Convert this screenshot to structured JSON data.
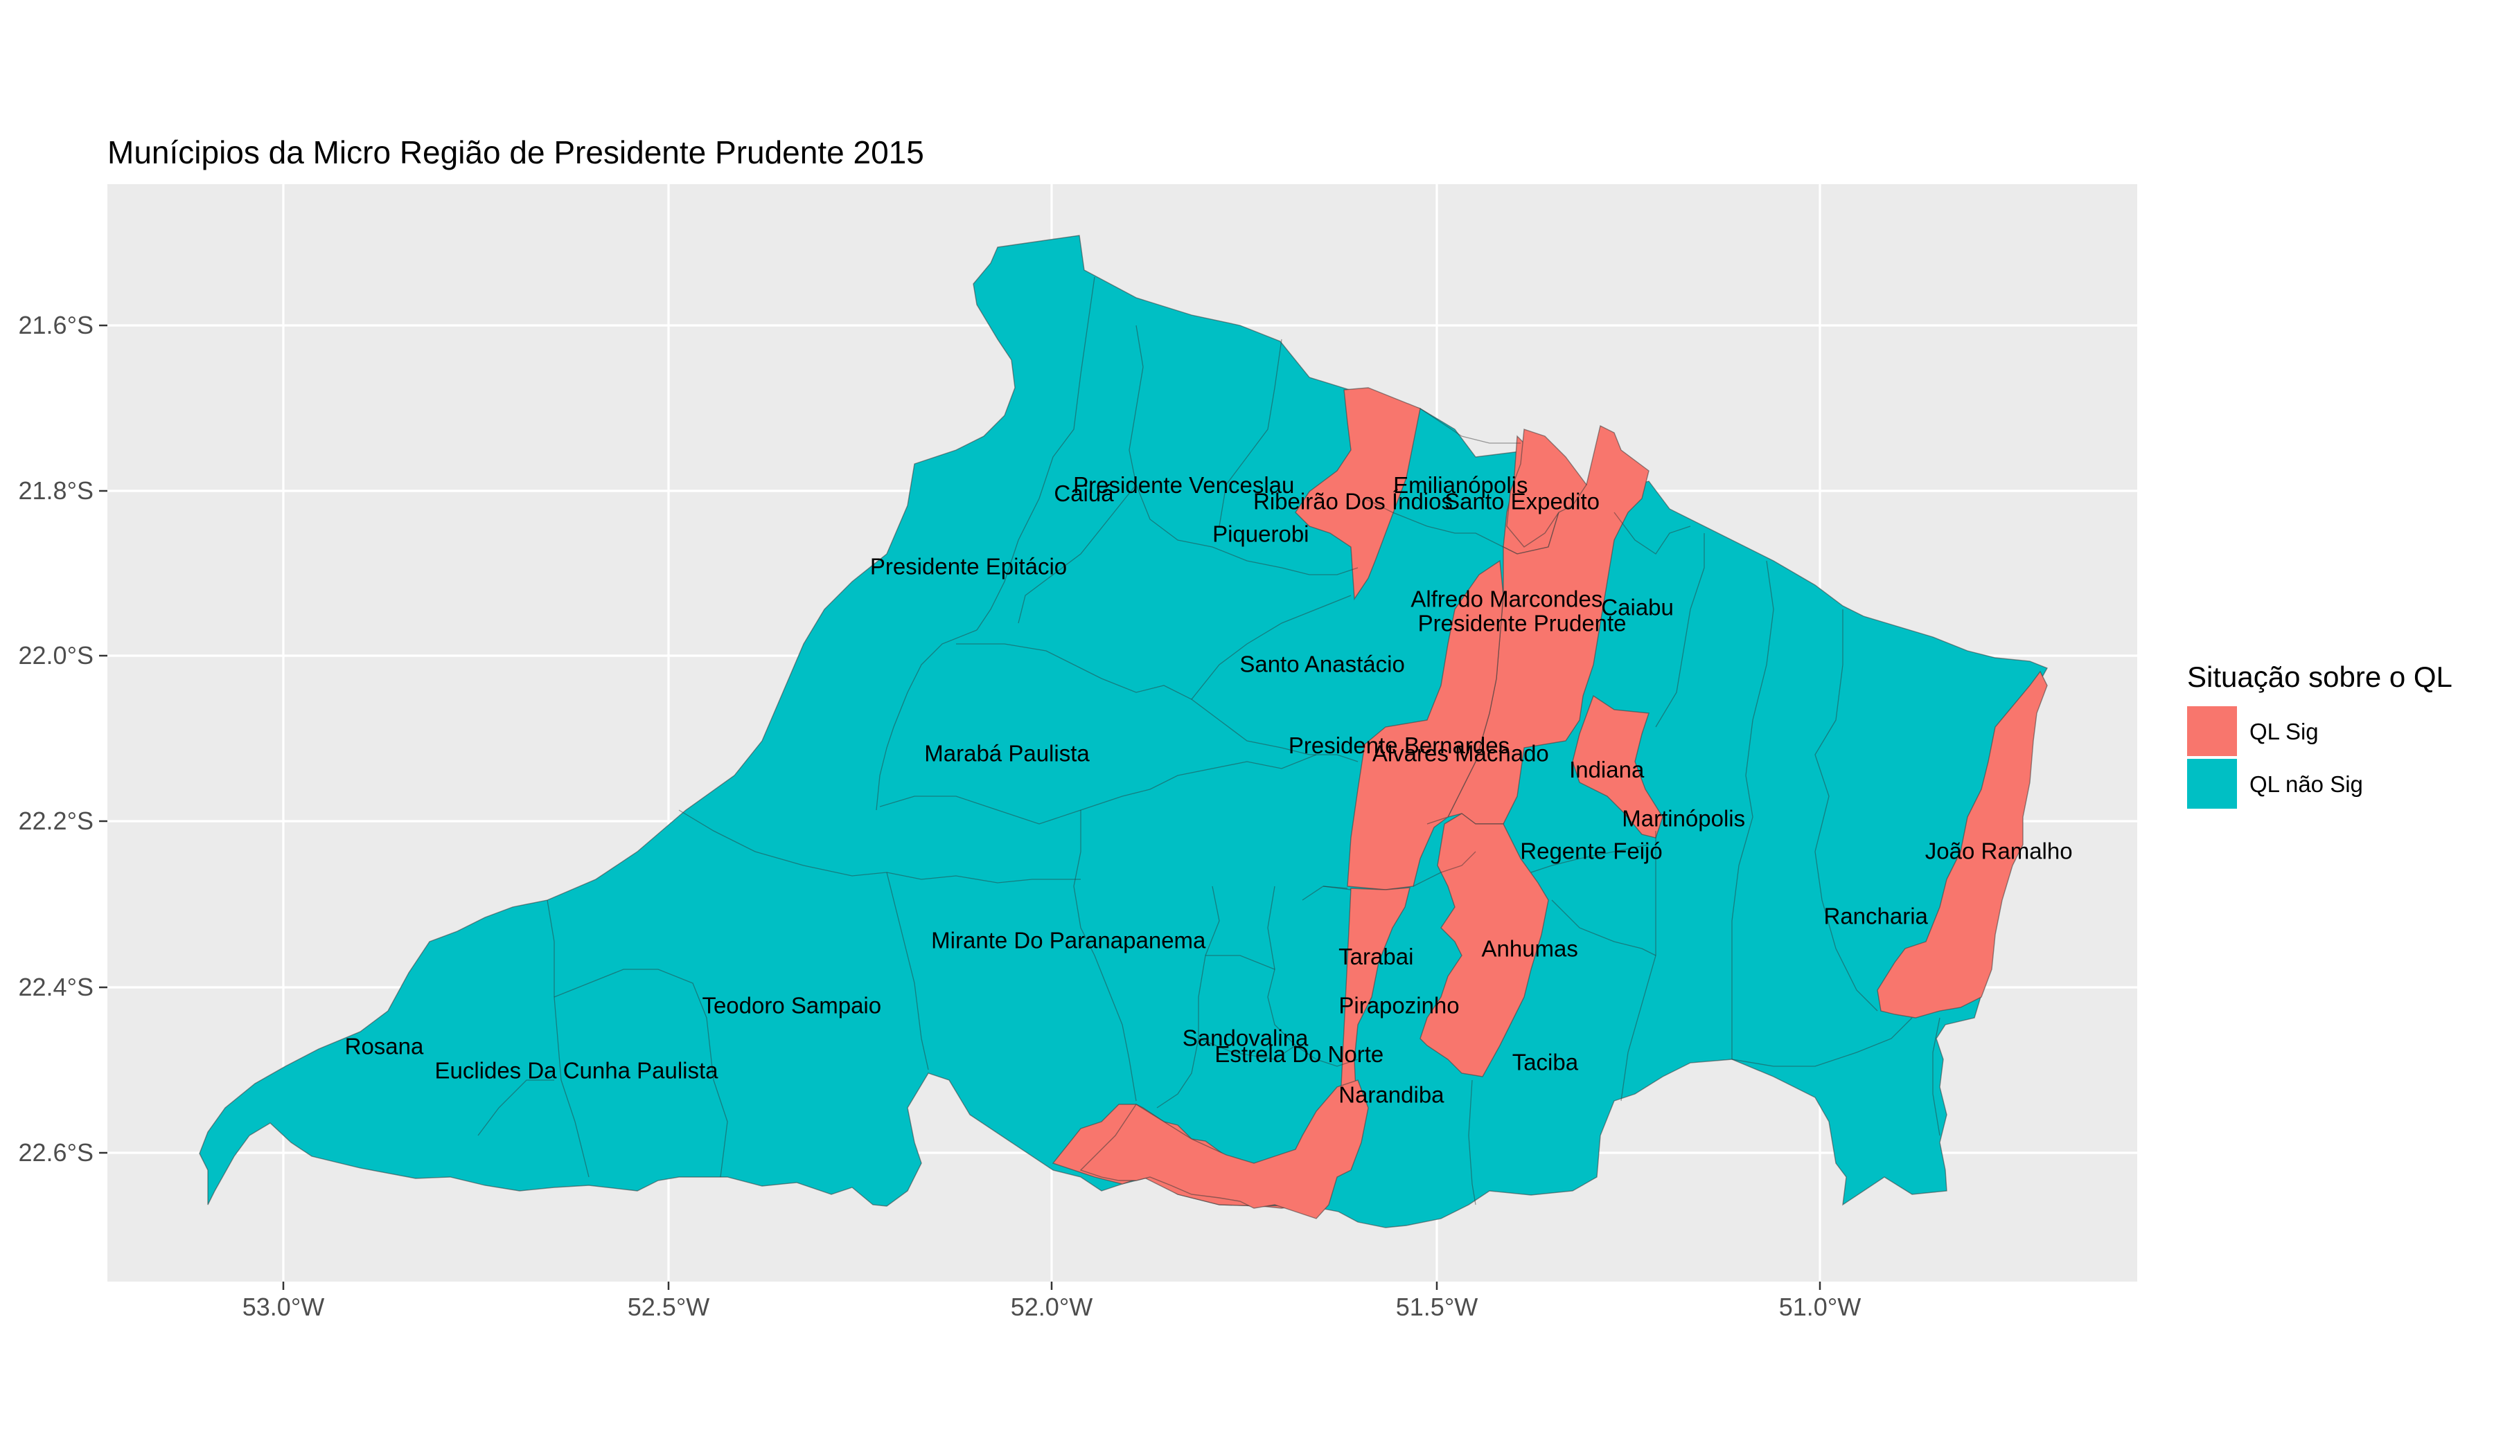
{
  "title": "Munícipios da Micro Região de Presidente Prudente 2015",
  "axes": {
    "x_ticks": [
      "53.0°W",
      "52.5°W",
      "52.0°W",
      "51.5°W",
      "51.0°W"
    ],
    "y_ticks": [
      "21.6°S",
      "21.8°S",
      "22.0°S",
      "22.2°S",
      "22.4°S",
      "22.6°S"
    ]
  },
  "legend": {
    "title": "Situação sobre o QL",
    "items": [
      {
        "label": "QL Sig",
        "color": "#F8766D"
      },
      {
        "label": "QL não Sig",
        "color": "#00BFC4"
      }
    ]
  },
  "chart_data": {
    "type": "choropleth",
    "title": "Munícipios da Micro Região de Presidente Prudente 2015",
    "legend_placement": "right",
    "grid": true,
    "lon_range": [
      -53.23,
      -50.59
    ],
    "lat_range": [
      -22.76,
      -21.41
    ],
    "categories": [
      "QL Sig",
      "QL não Sig"
    ],
    "municipalities": [
      {
        "name": "Presidente Venceslau",
        "status": "QL não Sig",
        "lon": -51.83,
        "lat": -21.79
      },
      {
        "name": "Caiuá",
        "status": "QL não Sig",
        "lon": -51.96,
        "lat": -21.8
      },
      {
        "name": "Ribeirão Dos Índios",
        "status": "QL Sig",
        "lon": -51.61,
        "lat": -21.81
      },
      {
        "name": "Emilianópolis",
        "status": "QL não Sig",
        "lon": -51.47,
        "lat": -21.79
      },
      {
        "name": "Santo Expedito",
        "status": "QL Sig",
        "lon": -51.39,
        "lat": -21.81
      },
      {
        "name": "Piquerobi",
        "status": "QL não Sig",
        "lon": -51.73,
        "lat": -21.85
      },
      {
        "name": "Presidente Epitácio",
        "status": "QL não Sig",
        "lon": -52.11,
        "lat": -21.89
      },
      {
        "name": "Alfredo Marcondes",
        "status": "QL Sig",
        "lon": -51.41,
        "lat": -21.93
      },
      {
        "name": "Caiabu",
        "status": "QL não Sig",
        "lon": -51.24,
        "lat": -21.94
      },
      {
        "name": "Presidente Prudente",
        "status": "QL Sig",
        "lon": -51.39,
        "lat": -21.96
      },
      {
        "name": "Santo Anastácio",
        "status": "QL não Sig",
        "lon": -51.65,
        "lat": -22.01
      },
      {
        "name": "Marabá Paulista",
        "status": "QL não Sig",
        "lon": -52.06,
        "lat": -22.12
      },
      {
        "name": "Presidente Bernardes",
        "status": "QL não Sig",
        "lon": -51.55,
        "lat": -22.11
      },
      {
        "name": "Álvares Machado",
        "status": "QL Sig",
        "lon": -51.47,
        "lat": -22.12
      },
      {
        "name": "Indiana",
        "status": "QL Sig",
        "lon": -51.28,
        "lat": -22.14
      },
      {
        "name": "Martinópolis",
        "status": "QL não Sig",
        "lon": -51.18,
        "lat": -22.2
      },
      {
        "name": "Regente Feijó",
        "status": "QL não Sig",
        "lon": -51.3,
        "lat": -22.24
      },
      {
        "name": "João Ramalho",
        "status": "QL Sig",
        "lon": -50.77,
        "lat": -22.24
      },
      {
        "name": "Rancharia",
        "status": "QL não Sig",
        "lon": -50.93,
        "lat": -22.32
      },
      {
        "name": "Mirante Do Paranapanema",
        "status": "QL não Sig",
        "lon": -51.98,
        "lat": -22.35
      },
      {
        "name": "Tarabai",
        "status": "QL não Sig",
        "lon": -51.58,
        "lat": -22.37
      },
      {
        "name": "Anhumas",
        "status": "QL Sig",
        "lon": -51.38,
        "lat": -22.36
      },
      {
        "name": "Teodoro Sampaio",
        "status": "QL não Sig",
        "lon": -52.34,
        "lat": -22.43
      },
      {
        "name": "Pirapozinho",
        "status": "QL não Sig",
        "lon": -51.55,
        "lat": -22.43
      },
      {
        "name": "Sandovalina",
        "status": "QL não Sig",
        "lon": -51.75,
        "lat": -22.47
      },
      {
        "name": "Rosana",
        "status": "QL não Sig",
        "lon": -52.87,
        "lat": -22.48
      },
      {
        "name": "Estrela Do Norte",
        "status": "QL não Sig",
        "lon": -51.68,
        "lat": -22.49
      },
      {
        "name": "Taciba",
        "status": "QL não Sig",
        "lon": -51.36,
        "lat": -22.5
      },
      {
        "name": "Euclides Da Cunha Paulista",
        "status": "QL não Sig",
        "lon": -52.62,
        "lat": -22.51
      },
      {
        "name": "Narandiba",
        "status": "QL Sig",
        "lon": -51.56,
        "lat": -22.54
      }
    ]
  }
}
